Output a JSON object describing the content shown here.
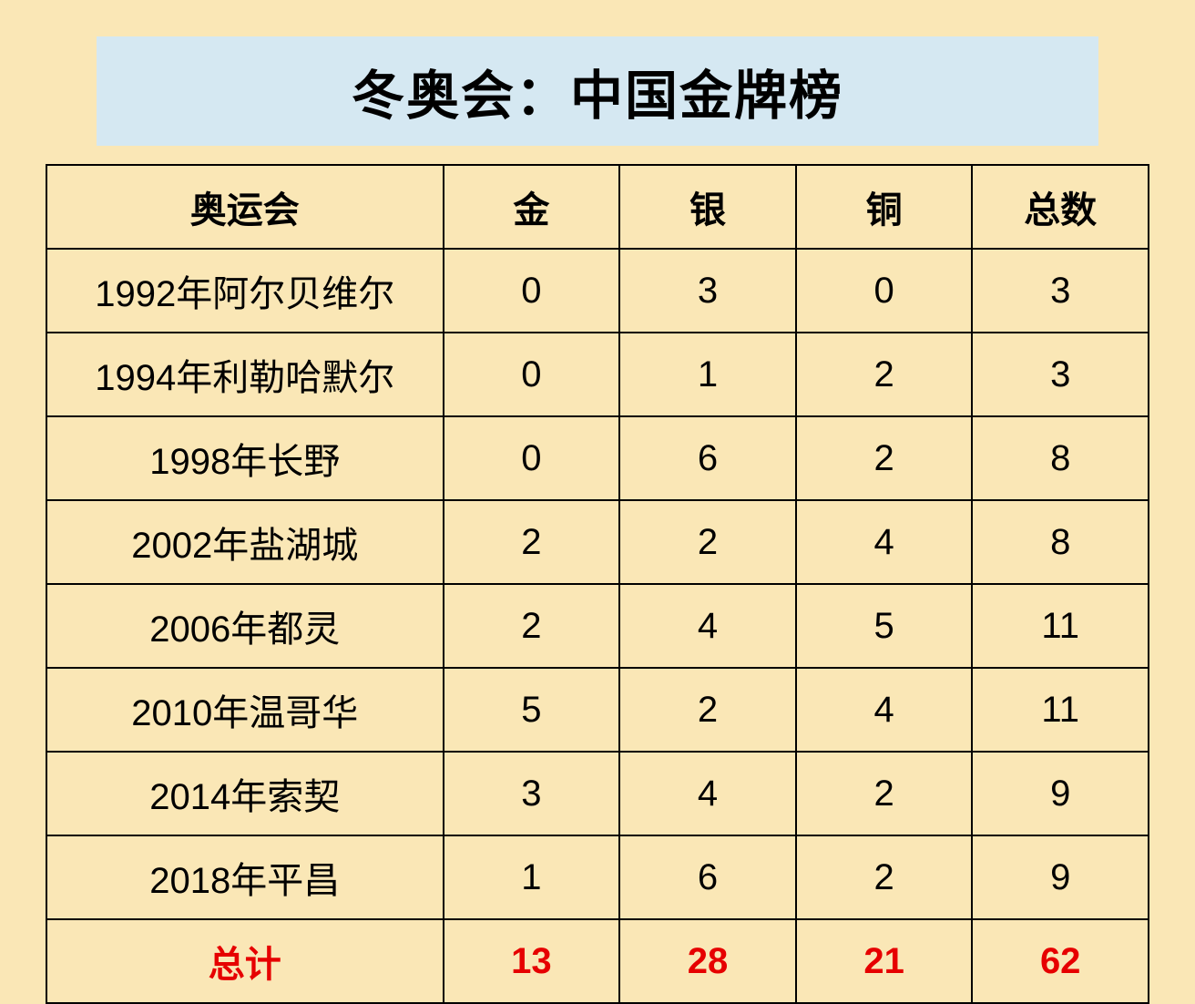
{
  "title": "冬奥会：中国金牌榜",
  "table": {
    "columns": [
      "奥运会",
      "金",
      "银",
      "铜",
      "总数"
    ],
    "column_widths": [
      "36%",
      "16%",
      "16%",
      "16%",
      "16%"
    ],
    "rows": [
      [
        "1992年阿尔贝维尔",
        "0",
        "3",
        "0",
        "3"
      ],
      [
        "1994年利勒哈默尔",
        "0",
        "1",
        "2",
        "3"
      ],
      [
        "1998年长野",
        "0",
        "6",
        "2",
        "8"
      ],
      [
        "2002年盐湖城",
        "2",
        "2",
        "4",
        "8"
      ],
      [
        "2006年都灵",
        "2",
        "4",
        "5",
        "11"
      ],
      [
        "2010年温哥华",
        "5",
        "2",
        "4",
        "11"
      ],
      [
        "2014年索契",
        "3",
        "4",
        "2",
        "9"
      ],
      [
        "2018年平昌",
        "1",
        "6",
        "2",
        "9"
      ]
    ],
    "total_row": [
      "总计",
      "13",
      "28",
      "21",
      "62"
    ],
    "header_fontsize": 40,
    "cell_fontsize": 40,
    "header_fontweight": 900,
    "cell_fontweight": 400,
    "total_fontweight": 900,
    "border_color": "#000000",
    "border_width": 2,
    "text_color": "#000000",
    "total_text_color": "#e60000"
  },
  "background_color": "#fae7b6",
  "title_background_color": "#d5e8f2",
  "title_fontsize": 58,
  "title_fontweight": 900,
  "title_color": "#000000"
}
